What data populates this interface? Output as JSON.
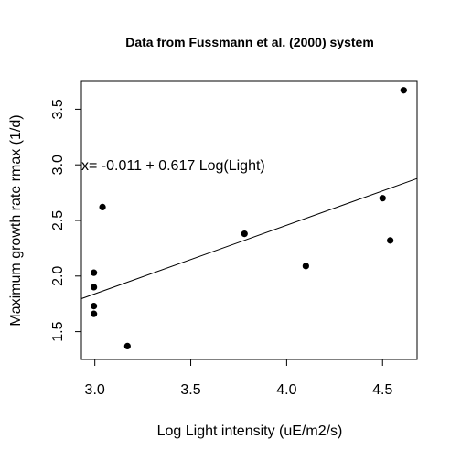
{
  "chart_data": {
    "type": "scatter",
    "title": "Data from Fussmann et al. (2000) system",
    "xlabel": "Log Light intensity (uE/m2/s)",
    "ylabel": "Maximum growth rate rmax (1/d)",
    "xlim": [
      2.93,
      4.68
    ],
    "ylim": [
      1.25,
      3.75
    ],
    "x_ticks": [
      3.0,
      3.5,
      4.0,
      4.5
    ],
    "x_tick_labels": [
      "3.0",
      "3.5",
      "4.0",
      "4.5"
    ],
    "y_ticks": [
      1.5,
      2.0,
      2.5,
      3.0,
      3.5
    ],
    "y_tick_labels": [
      "1.5",
      "2.0",
      "2.5",
      "3.0",
      "3.5"
    ],
    "points": [
      {
        "x": 2.995,
        "y": 2.03
      },
      {
        "x": 2.995,
        "y": 1.9
      },
      {
        "x": 2.995,
        "y": 1.73
      },
      {
        "x": 2.995,
        "y": 1.66
      },
      {
        "x": 3.04,
        "y": 2.62
      },
      {
        "x": 3.17,
        "y": 1.37
      },
      {
        "x": 3.78,
        "y": 2.38
      },
      {
        "x": 4.1,
        "y": 2.09
      },
      {
        "x": 4.5,
        "y": 2.7
      },
      {
        "x": 4.54,
        "y": 2.32
      },
      {
        "x": 4.61,
        "y": 3.67
      }
    ],
    "fit_line": {
      "intercept": -0.011,
      "slope": 0.617
    },
    "annotation": "x= -0.011 + 0.617 Log(Light)",
    "annotation_pos": {
      "x": 2.93,
      "y": 3.0
    },
    "grid": false,
    "legend": "none"
  }
}
